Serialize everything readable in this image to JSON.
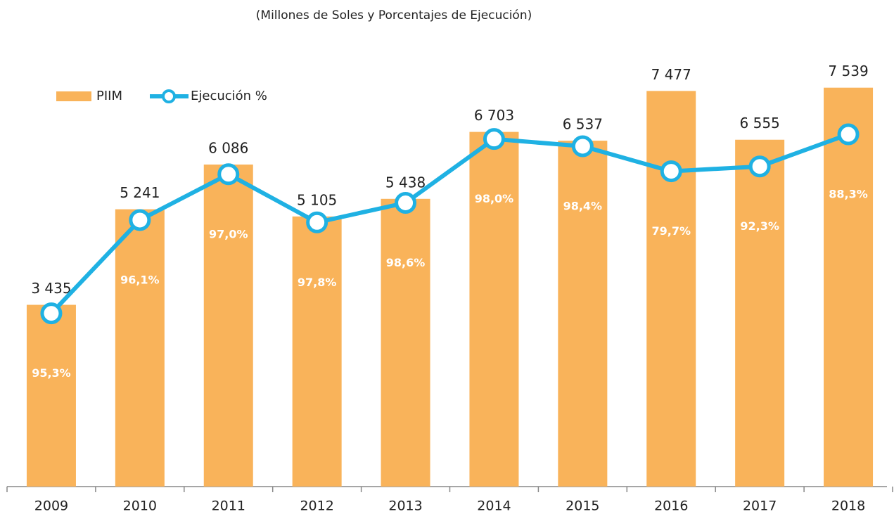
{
  "chart_data": {
    "type": "bar-line",
    "title": "(Millones de Soles y Porcentajes de Ejecución)",
    "categories": [
      "2009",
      "2010",
      "2011",
      "2012",
      "2013",
      "2014",
      "2015",
      "2016",
      "2017",
      "2018"
    ],
    "ylim": [
      0,
      8000
    ],
    "series": [
      {
        "name": "PIIM",
        "type": "bar",
        "color": "#f9b35a",
        "values": [
          3435,
          5241,
          6086,
          5105,
          5438,
          6703,
          6537,
          7477,
          6555,
          7539
        ],
        "value_labels": [
          "3 435",
          "5 241",
          "6 086",
          "5 105",
          "5 438",
          "6 703",
          "6 537",
          "7 477",
          "6 555",
          "7 539"
        ]
      },
      {
        "name": "Ejecución %",
        "type": "line",
        "color": "#1fb1e3",
        "values": [
          3274,
          5037,
          5903,
          4993,
          5362,
          6569,
          6432,
          5959,
          6050,
          6657
        ],
        "percent_labels": [
          "95,3%",
          "96,1%",
          "97,0%",
          "97,8%",
          "98,6%",
          "98,0%",
          "98,4%",
          "79,7%",
          "92,3%",
          "88,3%"
        ]
      }
    ]
  }
}
